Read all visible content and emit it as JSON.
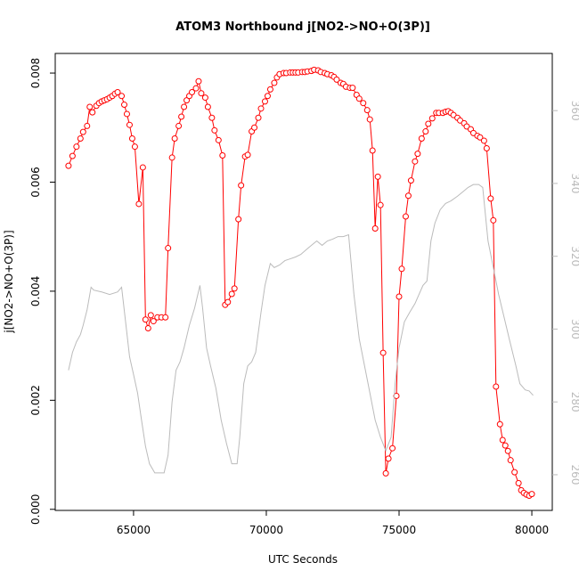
{
  "chart_data": {
    "type": "line",
    "title": "ATOM3 Northbound j[NO2->NO+O(3P)]",
    "xlabel": "UTC Seconds",
    "ylabel": "j[NO2->NO+O(3P)]",
    "xlim": [
      62050,
      80770
    ],
    "xticks": [
      65000,
      70000,
      75000,
      80000
    ],
    "ylim": [
      -2e-05,
      0.00836
    ],
    "yticks": [
      {
        "value": 0,
        "label": "0.000"
      },
      {
        "value": 0.002,
        "label": "0.002"
      },
      {
        "value": 0.004,
        "label": "0.004"
      },
      {
        "value": 0.006,
        "label": "0.006"
      },
      {
        "value": 0.008,
        "label": "0.008"
      }
    ],
    "y2lim": [
      250.2,
      375.7
    ],
    "y2ticks": [
      260,
      280,
      300,
      320,
      340,
      360
    ],
    "y2color": "#bbbbbb",
    "series": [
      {
        "color": "#ff0000",
        "markers": true,
        "x": [
          62550,
          62700,
          62850,
          63000,
          63100,
          63250,
          63350,
          63450,
          63600,
          63700,
          63800,
          63900,
          64000,
          64100,
          64200,
          64300,
          64400,
          64550,
          64650,
          64750,
          64850,
          64950,
          65050,
          65200,
          65350,
          65450,
          65550,
          65650,
          65750,
          65900,
          66050,
          66200,
          66300,
          66450,
          66550,
          66700,
          66800,
          66900,
          67000,
          67100,
          67200,
          67350,
          67450,
          67550,
          67700,
          67800,
          67950,
          68050,
          68200,
          68350,
          68450,
          68550,
          68700,
          68800,
          68950,
          69050,
          69200,
          69300,
          69450,
          69550,
          69700,
          69800,
          69950,
          70050,
          70150,
          70300,
          70400,
          70500,
          70650,
          70750,
          70900,
          71000,
          71100,
          71200,
          71350,
          71450,
          71550,
          71700,
          71800,
          71950,
          72050,
          72200,
          72300,
          72450,
          72550,
          72650,
          72800,
          72900,
          73000,
          73150,
          73250,
          73400,
          73500,
          73650,
          73800,
          73900,
          74000,
          74100,
          74200,
          74300,
          74400,
          74500,
          74600,
          74750,
          74900,
          75000,
          75100,
          75250,
          75350,
          75450,
          75600,
          75700,
          75850,
          76000,
          76100,
          76250,
          76400,
          76500,
          76650,
          76750,
          76850,
          76950,
          77050,
          77200,
          77300,
          77450,
          77550,
          77700,
          77800,
          77950,
          78050,
          78200,
          78300,
          78450,
          78550,
          78650,
          78800,
          78900,
          79000,
          79100,
          79200,
          79350,
          79500,
          79600,
          79700,
          79800,
          79900,
          80000
        ],
        "values": [
          0.0063,
          0.00648,
          0.00665,
          0.0068,
          0.00692,
          0.00703,
          0.00738,
          0.00728,
          0.0074,
          0.00745,
          0.00748,
          0.0075,
          0.00752,
          0.00755,
          0.00758,
          0.00762,
          0.00765,
          0.00758,
          0.00742,
          0.00725,
          0.00705,
          0.0068,
          0.00665,
          0.0056,
          0.00627,
          0.00348,
          0.00332,
          0.00356,
          0.00345,
          0.00352,
          0.00352,
          0.00352,
          0.00479,
          0.00645,
          0.0068,
          0.00703,
          0.0072,
          0.00738,
          0.0075,
          0.00758,
          0.00765,
          0.00772,
          0.00785,
          0.00763,
          0.00755,
          0.00738,
          0.00718,
          0.00695,
          0.00677,
          0.00649,
          0.00375,
          0.0038,
          0.00395,
          0.00405,
          0.00532,
          0.00594,
          0.00647,
          0.0065,
          0.00693,
          0.007,
          0.00718,
          0.00735,
          0.00748,
          0.00758,
          0.0077,
          0.00782,
          0.00792,
          0.00798,
          0.008,
          0.008,
          0.00801,
          0.00801,
          0.00801,
          0.00801,
          0.00802,
          0.00802,
          0.00803,
          0.00804,
          0.00806,
          0.00805,
          0.00802,
          0.008,
          0.00798,
          0.00796,
          0.00793,
          0.00788,
          0.00782,
          0.0078,
          0.00775,
          0.00773,
          0.00773,
          0.0076,
          0.00753,
          0.00745,
          0.00732,
          0.00715,
          0.00658,
          0.00515,
          0.0061,
          0.00558,
          0.00287,
          0.00066,
          0.00093,
          0.00112,
          0.00208,
          0.0039,
          0.00441,
          0.00537,
          0.00575,
          0.00603,
          0.00638,
          0.00652,
          0.0068,
          0.00693,
          0.00707,
          0.00717,
          0.00727,
          0.00727,
          0.00727,
          0.00729,
          0.0073,
          0.00727,
          0.00723,
          0.00718,
          0.00713,
          0.00708,
          0.00702,
          0.00697,
          0.0069,
          0.00685,
          0.00682,
          0.00676,
          0.00662,
          0.0057,
          0.0053,
          0.00225,
          0.00156,
          0.00127,
          0.00117,
          0.00107,
          0.0009,
          0.00068,
          0.00048,
          0.00035,
          0.0003,
          0.00027,
          0.00025,
          0.00028
        ]
      },
      {
        "color": "#bbbbbb",
        "axis": "y2",
        "markers": false,
        "x": [
          62550,
          62700,
          62850,
          63000,
          63100,
          63250,
          63400,
          63500,
          63800,
          64100,
          64400,
          64550,
          64700,
          64850,
          65000,
          65150,
          65300,
          65450,
          65600,
          65800,
          66000,
          66150,
          66300,
          66450,
          66600,
          66750,
          66900,
          67100,
          67300,
          67500,
          67600,
          67750,
          67900,
          68100,
          68300,
          68500,
          68700,
          68900,
          69000,
          69150,
          69300,
          69450,
          69600,
          69800,
          69950,
          70150,
          70300,
          70500,
          70700,
          70900,
          71100,
          71300,
          71500,
          71700,
          71900,
          72100,
          72300,
          72500,
          72700,
          72900,
          73100,
          73300,
          73500,
          73700,
          73900,
          74100,
          74300,
          74500,
          74700,
          74850,
          75000,
          75200,
          75400,
          75600,
          75750,
          75900,
          76050,
          76200,
          76350,
          76550,
          76750,
          76950,
          77200,
          77400,
          77600,
          77800,
          78000,
          78150,
          78350,
          78550,
          78750,
          78950,
          79150,
          79400,
          79550,
          79750,
          79900,
          80050
        ],
        "values": [
          288.7,
          293.6,
          296.5,
          298.5,
          301,
          305.3,
          311.5,
          310.7,
          310.2,
          309.5,
          310.2,
          311.5,
          302,
          292.4,
          287.5,
          282.5,
          275,
          267.8,
          263,
          260.5,
          260.5,
          260.5,
          265.4,
          280,
          288.7,
          291,
          294.8,
          301,
          305.8,
          312,
          305.8,
          294.8,
          289.9,
          283.8,
          275,
          268.6,
          263,
          263,
          270.3,
          285,
          289.9,
          291,
          293.6,
          304.6,
          312,
          318,
          316.9,
          317.6,
          318.8,
          319.3,
          319.8,
          320.5,
          321.8,
          323,
          324.2,
          323,
          324.2,
          324.7,
          325.4,
          325.4,
          325.9,
          309.5,
          297.3,
          289.9,
          282.5,
          275,
          270.3,
          266.6,
          270.3,
          285,
          294.8,
          302,
          304.6,
          307,
          309.5,
          312,
          313.2,
          324.2,
          329.1,
          332.8,
          334.5,
          335.2,
          336.5,
          337.7,
          338.9,
          339.7,
          339.7,
          338.9,
          324.2,
          316.9,
          309.5,
          303.4,
          297.3,
          289.9,
          285,
          283.3,
          283,
          281.8
        ]
      }
    ]
  }
}
